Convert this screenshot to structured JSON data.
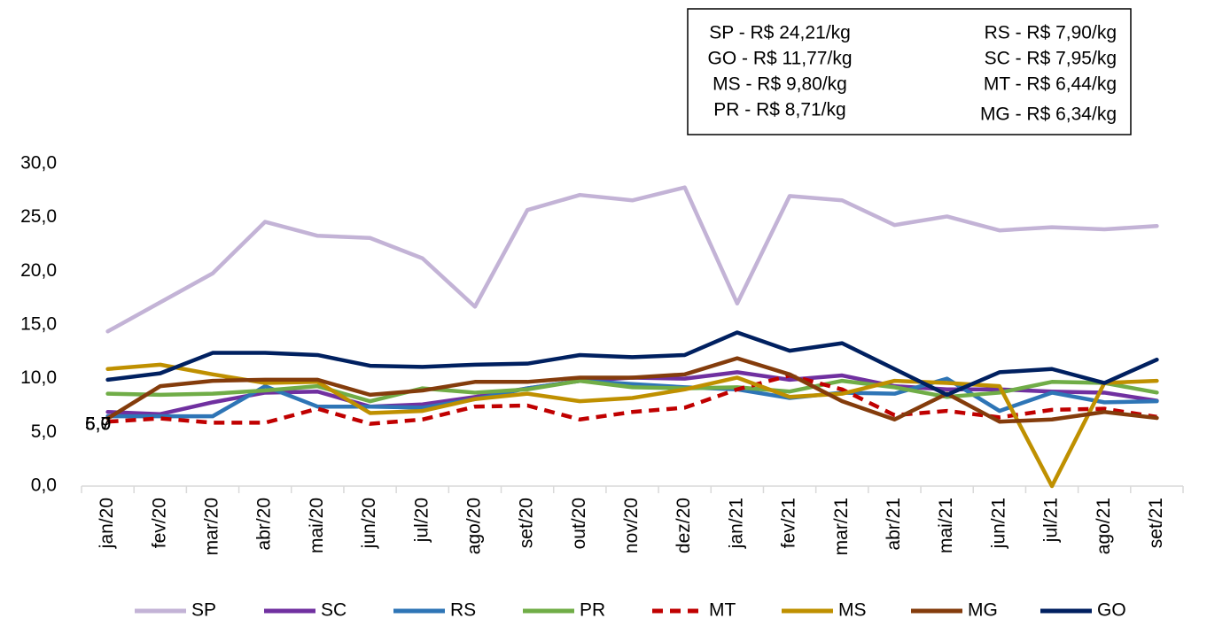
{
  "chart_data": {
    "type": "line",
    "categories": [
      "jan/20",
      "fev/20",
      "mar/20",
      "abr/20",
      "mai/20",
      "jun/20",
      "jul/20",
      "ago/20",
      "set/20",
      "out/20",
      "nov/20",
      "dez/20",
      "jan/21",
      "fev/21",
      "mar/21",
      "abr/21",
      "mai/21",
      "jun/21",
      "jul/21",
      "ago/21",
      "set/21"
    ],
    "ylim": [
      0,
      30
    ],
    "yticks": [
      {
        "value": 0,
        "label": "0,0"
      },
      {
        "value": 5,
        "label": "5,0"
      },
      {
        "value": 10,
        "label": "10,0"
      },
      {
        "value": 15,
        "label": "15,0"
      },
      {
        "value": 20,
        "label": "20,0"
      },
      {
        "value": 25,
        "label": "25,0"
      },
      {
        "value": 30,
        "label": "30,0"
      }
    ],
    "legend": "bottom",
    "annotations": [
      "5,9",
      "6,0",
      "5,7"
    ],
    "price_box": {
      "left": [
        "SP - R$ 24,21/kg",
        "GO - R$ 11,77/kg",
        "MS - R$ 9,80/kg",
        "PR - R$ 8,71/kg"
      ],
      "right": [
        "RS - R$ 7,90/kg",
        "SC - R$ 7,95/kg",
        "MT - R$ 6,44/kg",
        "MG - R$ 6,34/kg"
      ]
    },
    "series": [
      {
        "name": "SP",
        "color": "#c3b3d6",
        "values": [
          14.4,
          17.1,
          19.8,
          24.6,
          23.3,
          23.1,
          21.2,
          16.7,
          25.7,
          27.1,
          26.6,
          27.8,
          17.0,
          27.0,
          26.6,
          24.3,
          25.1,
          23.8,
          24.1,
          23.9,
          24.21
        ]
      },
      {
        "name": "SC",
        "color": "#7030a0",
        "values": [
          6.9,
          6.7,
          7.8,
          8.7,
          8.8,
          7.4,
          7.6,
          8.3,
          9.1,
          9.8,
          10.1,
          10.0,
          10.6,
          9.9,
          10.3,
          9.3,
          9.0,
          9.0,
          8.8,
          8.7,
          7.95
        ]
      },
      {
        "name": "RS",
        "color": "#2e75b6",
        "values": [
          6.5,
          6.5,
          6.5,
          9.3,
          7.4,
          7.4,
          7.3,
          8.1,
          9.1,
          9.8,
          9.5,
          9.2,
          9.0,
          8.2,
          8.7,
          8.6,
          10.0,
          7.0,
          8.7,
          7.8,
          7.9
        ]
      },
      {
        "name": "PR",
        "color": "#70ad47",
        "values": [
          8.6,
          8.5,
          8.6,
          8.9,
          9.3,
          7.9,
          9.1,
          8.7,
          9.0,
          9.8,
          9.2,
          9.1,
          9.2,
          8.8,
          9.8,
          9.2,
          8.3,
          8.7,
          9.7,
          9.6,
          8.71
        ]
      },
      {
        "name": "MT",
        "color": "#c00000",
        "dashed": true,
        "values": [
          6.0,
          6.3,
          5.9,
          5.9,
          7.2,
          5.8,
          6.2,
          7.4,
          7.5,
          6.2,
          6.9,
          7.3,
          9.0,
          10.3,
          9.0,
          6.6,
          7.0,
          6.4,
          7.1,
          7.2,
          6.44
        ]
      },
      {
        "name": "MS",
        "color": "#bf9000",
        "values": [
          10.9,
          11.3,
          10.4,
          9.6,
          9.7,
          6.8,
          7.0,
          8.1,
          8.6,
          7.9,
          8.2,
          9.0,
          10.1,
          8.3,
          8.6,
          9.8,
          9.6,
          9.3,
          0.0,
          9.6,
          9.8
        ]
      },
      {
        "name": "MG",
        "color": "#843c0c",
        "values": [
          6.3,
          9.3,
          9.8,
          9.9,
          9.9,
          8.5,
          8.9,
          9.7,
          9.7,
          10.1,
          10.1,
          10.4,
          11.9,
          10.4,
          7.9,
          6.2,
          8.6,
          6.0,
          6.2,
          6.9,
          6.34
        ]
      },
      {
        "name": "GO",
        "color": "#002060",
        "values": [
          9.9,
          10.5,
          12.4,
          12.4,
          12.2,
          11.2,
          11.1,
          11.3,
          11.4,
          12.2,
          12.0,
          12.2,
          14.3,
          12.6,
          13.3,
          10.9,
          8.5,
          10.6,
          10.9,
          9.6,
          11.77
        ]
      }
    ]
  }
}
